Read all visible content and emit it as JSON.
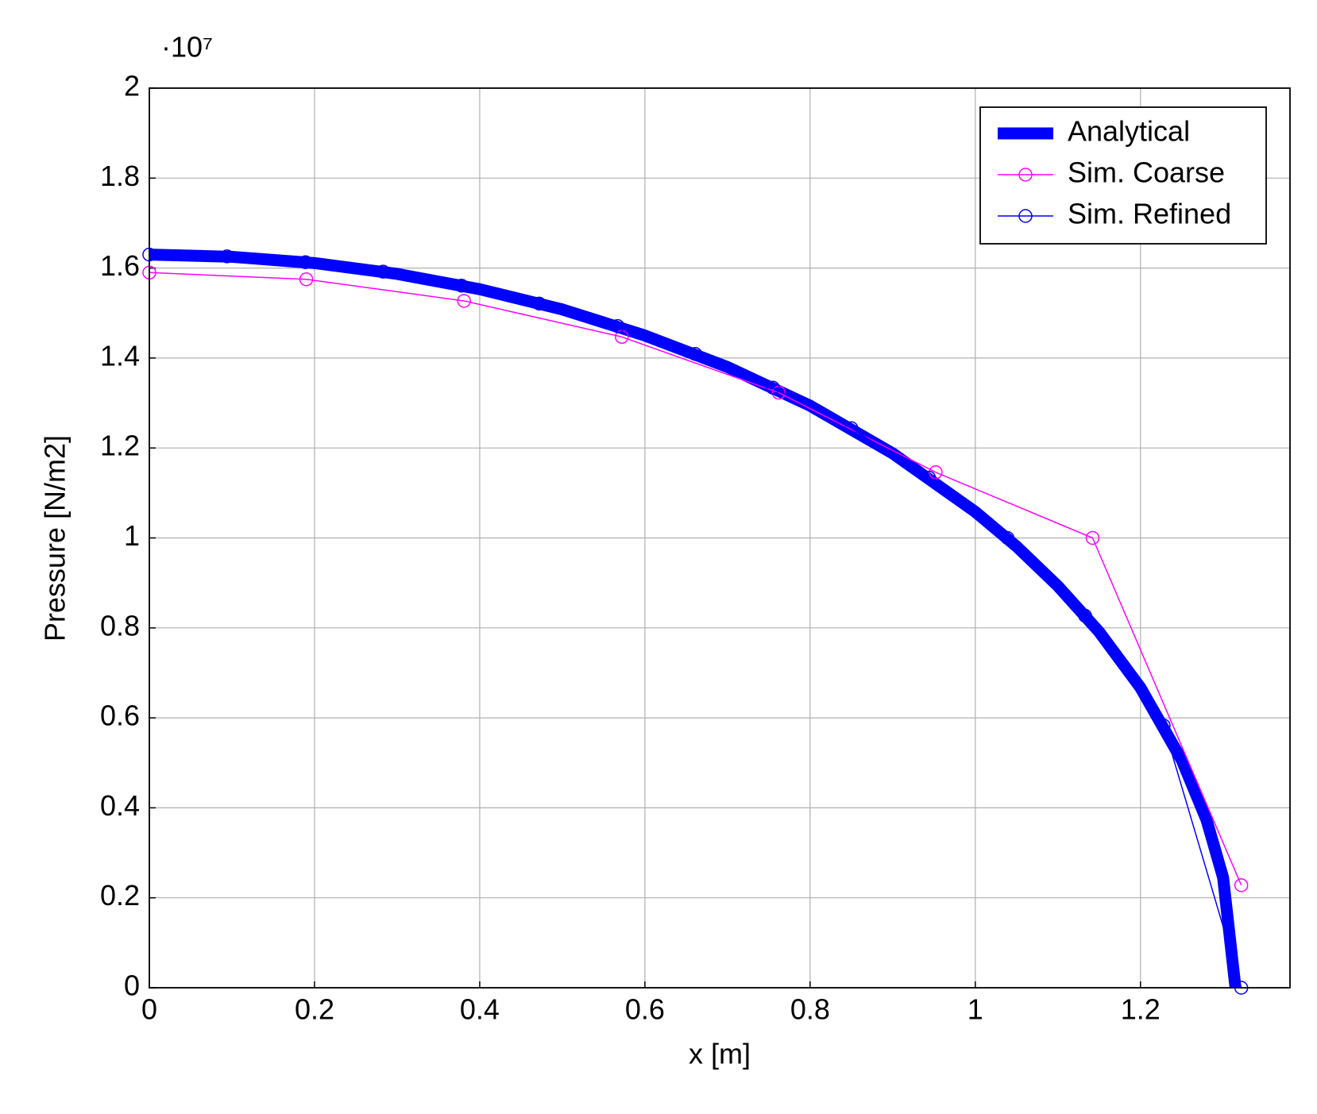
{
  "chart_data": {
    "type": "line",
    "xlabel": "x [m]",
    "ylabel": "Pressure [N/m2]",
    "y_multiplier": "·10⁷",
    "xlim": [
      0,
      1.381
    ],
    "ylim": [
      0,
      2
    ],
    "xticks": [
      0,
      0.2,
      0.4,
      0.6,
      0.8,
      1,
      1.2
    ],
    "yticks": [
      0,
      0.2,
      0.4,
      0.6,
      0.8,
      1,
      1.2,
      1.4,
      1.6,
      1.8,
      2
    ],
    "grid": true,
    "legend": "upper right",
    "series": [
      {
        "name": "Analytical",
        "color": "#0000ff",
        "marker": "none",
        "width": 15,
        "x": [
          0,
          0.1,
          0.2,
          0.3,
          0.4,
          0.5,
          0.6,
          0.7,
          0.8,
          0.9,
          1.0,
          1.05,
          1.1,
          1.15,
          1.2,
          1.25,
          1.28,
          1.3,
          1.315
        ],
        "values": [
          1.63,
          1.625,
          1.611,
          1.587,
          1.553,
          1.508,
          1.45,
          1.38,
          1.294,
          1.188,
          1.058,
          0.981,
          0.893,
          0.791,
          0.667,
          0.506,
          0.373,
          0.245,
          0
        ]
      },
      {
        "name": "Sim. Coarse",
        "color": "#ff00ff",
        "marker": "circle",
        "width": 1.5,
        "x": [
          0,
          0.19,
          0.381,
          0.572,
          0.762,
          0.952,
          1.142,
          1.322
        ],
        "values": [
          1.59,
          1.575,
          1.527,
          1.447,
          1.323,
          1.146,
          1.0,
          0.228
        ]
      },
      {
        "name": "Sim. Refined",
        "color": "#0000ff",
        "marker": "circle",
        "width": 1.5,
        "x": [
          0,
          0.094,
          0.189,
          0.283,
          0.378,
          0.472,
          0.567,
          0.661,
          0.755,
          0.85,
          0.944,
          1.039,
          1.133,
          1.228,
          1.322
        ],
        "values": [
          1.63,
          1.626,
          1.613,
          1.592,
          1.561,
          1.521,
          1.471,
          1.409,
          1.334,
          1.244,
          1.134,
          1.0,
          0.827,
          0.583,
          0
        ]
      }
    ]
  }
}
